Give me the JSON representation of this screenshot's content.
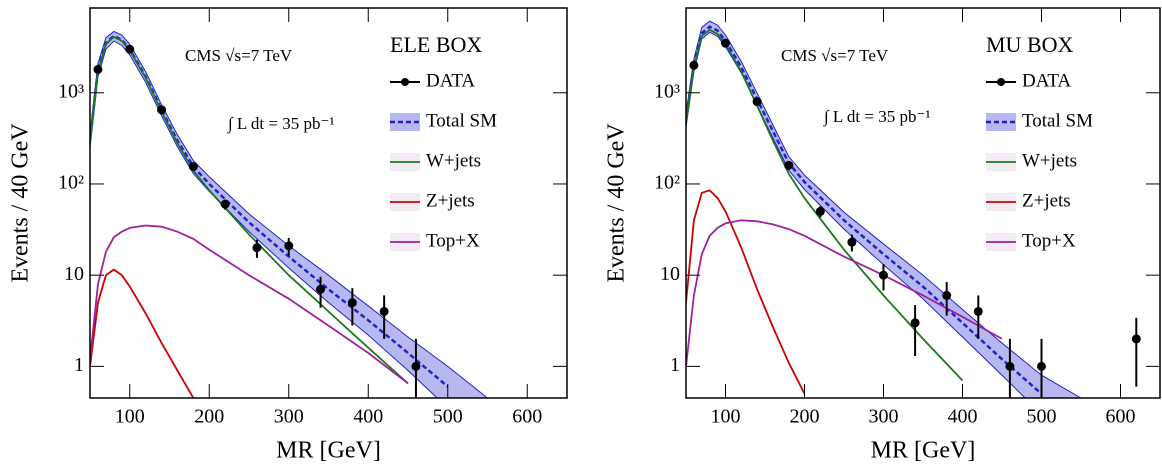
{
  "chart_data": [
    {
      "type": "line",
      "box_label": "ELE BOX",
      "annotations": [
        "CMS  √s=7 TeV",
        "∫ L dt = 35 pb⁻¹"
      ],
      "xlabel": "MR [GeV]",
      "ylabel": "Events / 40 GeV",
      "log_y": true,
      "xlim": [
        50,
        650
      ],
      "ylim": [
        0.45,
        8500
      ],
      "xticks": [
        100,
        200,
        300,
        400,
        500,
        600
      ],
      "yticks": [
        1,
        10,
        {
          "value": 100,
          "label": "10²"
        },
        {
          "value": 1000,
          "label": "10³"
        }
      ],
      "x": [
        50,
        60,
        70,
        80,
        90,
        100,
        120,
        140,
        160,
        180,
        200,
        250,
        300,
        350,
        400,
        450,
        500,
        550
      ],
      "series": [
        {
          "name": "DATA",
          "color": "#000000",
          "x": [
            60,
            100,
            140,
            180,
            220,
            260,
            300,
            340,
            380,
            420,
            460
          ],
          "values": [
            1800,
            3000,
            650,
            155,
            60,
            20,
            21,
            7,
            5,
            4,
            1
          ],
          "errors": [
            42,
            55,
            25,
            12,
            7.7,
            4.5,
            4.6,
            2.6,
            2.2,
            2,
            1
          ]
        },
        {
          "name": "Total SM",
          "color": "#2222cc",
          "values": [
            300,
            1800,
            3500,
            4200,
            3800,
            3000,
            1500,
            650,
            300,
            155,
            100,
            38,
            16,
            7,
            3.2,
            1.4,
            0.6,
            null
          ],
          "lower": [
            250,
            1500,
            3000,
            3700,
            3300,
            2600,
            1300,
            560,
            255,
            130,
            83,
            30,
            12,
            5,
            2.2,
            0.9,
            0.35,
            null
          ],
          "upper": [
            350,
            2100,
            4000,
            4700,
            4300,
            3400,
            1700,
            740,
            345,
            180,
            120,
            47,
            21,
            10,
            4.6,
            2.1,
            1,
            0.45
          ]
        },
        {
          "name": "W+jets",
          "color": "#1a7a1a",
          "values": [
            290,
            1750,
            3400,
            4100,
            3700,
            2900,
            1450,
            620,
            280,
            140,
            85,
            28,
            10,
            4,
            1.6,
            0.65,
            null,
            null
          ]
        },
        {
          "name": "Z+jets",
          "color": "#cc0000",
          "values": [
            1,
            5,
            10,
            11.5,
            10,
            7.5,
            3.8,
            1.8,
            0.9,
            0.45,
            null,
            null,
            null,
            null,
            null,
            null,
            null,
            null
          ]
        },
        {
          "name": "Top+X",
          "color": "#a020a0",
          "values": [
            1.2,
            8,
            18,
            26,
            30,
            33,
            35,
            34,
            30,
            25,
            19,
            10,
            5.5,
            2.8,
            1.4,
            0.65,
            null,
            null
          ]
        }
      ]
    },
    {
      "type": "line",
      "box_label": "MU BOX",
      "annotations": [
        "CMS  √s=7 TeV",
        "∫ L dt = 35 pb⁻¹"
      ],
      "xlabel": "MR [GeV]",
      "ylabel": "Events / 40 GeV",
      "log_y": true,
      "xlim": [
        50,
        650
      ],
      "ylim": [
        0.45,
        8500
      ],
      "xticks": [
        100,
        200,
        300,
        400,
        500,
        600
      ],
      "yticks": [
        1,
        10,
        {
          "value": 100,
          "label": "10²"
        },
        {
          "value": 1000,
          "label": "10³"
        }
      ],
      "x": [
        50,
        60,
        70,
        80,
        90,
        100,
        120,
        140,
        160,
        180,
        200,
        250,
        300,
        350,
        400,
        450,
        500,
        550
      ],
      "series": [
        {
          "name": "DATA",
          "color": "#000000",
          "x": [
            60,
            100,
            140,
            180,
            220,
            260,
            300,
            340,
            380,
            420,
            460,
            500,
            620
          ],
          "values": [
            2000,
            3500,
            800,
            160,
            50,
            23,
            10,
            3,
            6,
            4,
            1,
            1,
            2
          ],
          "errors": [
            45,
            59,
            28,
            13,
            7,
            4.8,
            3.2,
            1.7,
            2.4,
            2,
            1,
            1,
            1.4
          ]
        },
        {
          "name": "Total SM",
          "color": "#2222cc",
          "values": [
            500,
            2000,
            4500,
            5300,
            4800,
            3700,
            1900,
            850,
            380,
            170,
            105,
            40,
            17,
            7.5,
            3,
            1.2,
            0.5,
            null
          ],
          "lower": [
            420,
            1700,
            3900,
            4600,
            4150,
            3200,
            1650,
            730,
            320,
            142,
            87,
            32,
            13,
            5.5,
            2.1,
            0.8,
            0.3,
            null
          ],
          "upper": [
            590,
            2350,
            5200,
            6100,
            5500,
            4300,
            2200,
            990,
            445,
            200,
            125,
            49,
            22,
            10,
            4.2,
            1.8,
            0.8,
            0.45
          ]
        },
        {
          "name": "W+jets",
          "color": "#1a7a1a",
          "values": [
            480,
            1900,
            4200,
            4900,
            4400,
            3400,
            1700,
            720,
            300,
            130,
            70,
            19,
            6,
            2,
            0.7,
            null,
            null,
            null
          ]
        },
        {
          "name": "Z+jets",
          "color": "#cc0000",
          "values": [
            5,
            40,
            80,
            85,
            70,
            50,
            20,
            7,
            2.7,
            1.1,
            0.5,
            null,
            null,
            null,
            null,
            null,
            null,
            null
          ]
        },
        {
          "name": "Top+X",
          "color": "#a020a0",
          "values": [
            1,
            6,
            17,
            27,
            33,
            37,
            40,
            39,
            36,
            32,
            27,
            16,
            10,
            6,
            3.5,
            2,
            null,
            null
          ]
        }
      ]
    }
  ]
}
